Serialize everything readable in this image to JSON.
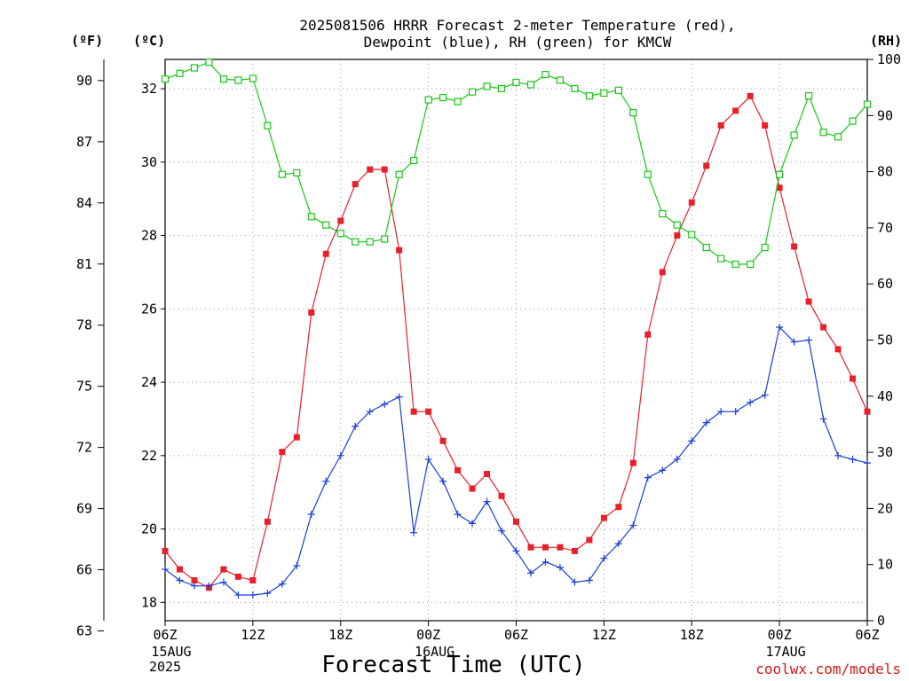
{
  "title_line1": "2025081506 HRRR Forecast 2-meter Temperature (red),",
  "title_line2": "Dewpoint (blue), RH (green) for KMCW",
  "unit_f": "(ºF)",
  "unit_c": "(ºC)",
  "unit_rh": "(RH)",
  "xlabel": "Forecast Time (UTC)",
  "credit": "coolwx.com/models",
  "colors": {
    "temperature": "#e8202a",
    "dewpoint": "#1a3ed8",
    "rh": "#18c818"
  },
  "chart_data": {
    "type": "line",
    "title": "2025081506 HRRR Forecast 2-meter Temperature (red), Dewpoint (blue), RH (green) for KMCW",
    "xlabel": "Forecast Time (UTC)",
    "x_unit": "forecast hour",
    "x": [
      0,
      1,
      2,
      3,
      4,
      5,
      6,
      7,
      8,
      9,
      10,
      11,
      12,
      13,
      14,
      15,
      16,
      17,
      18,
      19,
      20,
      21,
      22,
      23,
      24,
      25,
      26,
      27,
      28,
      29,
      30,
      31,
      32,
      33,
      34,
      35,
      36,
      37,
      38,
      39,
      40,
      41,
      42,
      43,
      44,
      45,
      46,
      47,
      48
    ],
    "xlim": [
      0,
      48
    ],
    "x_ticks": [
      {
        "x": 0,
        "label": "06Z",
        "date": "15AUG",
        "year": "2025"
      },
      {
        "x": 6,
        "label": "12Z"
      },
      {
        "x": 12,
        "label": "18Z"
      },
      {
        "x": 18,
        "label": "00Z",
        "date": "16AUG"
      },
      {
        "x": 24,
        "label": "06Z"
      },
      {
        "x": 30,
        "label": "12Z"
      },
      {
        "x": 36,
        "label": "18Z"
      },
      {
        "x": 42,
        "label": "00Z",
        "date": "17AUG"
      },
      {
        "x": 48,
        "label": "06Z"
      }
    ],
    "y_left_unit": "°C",
    "ylim_c": [
      17.5,
      32.8
    ],
    "y_ticks_c": [
      18,
      20,
      22,
      24,
      26,
      28,
      30,
      32
    ],
    "y_ticks_f": [
      63,
      66,
      69,
      72,
      75,
      78,
      81,
      84,
      87,
      90
    ],
    "y_right_unit": "RH",
    "ylim_rh": [
      0,
      100
    ],
    "y_ticks_rh": [
      0,
      10,
      20,
      30,
      40,
      50,
      60,
      70,
      80,
      90,
      100
    ],
    "series": [
      {
        "name": "Temperature (red)",
        "axis": "c",
        "color": "#e8202a",
        "marker": "filled-square",
        "values": [
          19.4,
          18.9,
          18.6,
          18.4,
          18.9,
          18.7,
          18.6,
          20.2,
          22.1,
          22.5,
          25.9,
          27.5,
          28.4,
          29.4,
          29.8,
          29.8,
          27.6,
          23.2,
          23.2,
          22.4,
          21.6,
          21.1,
          21.5,
          20.9,
          20.2,
          19.5,
          19.5,
          19.5,
          19.4,
          19.7,
          20.3,
          20.6,
          21.8,
          25.3,
          27.0,
          28.0,
          28.9,
          29.9,
          31.0,
          31.4,
          31.8,
          31.0,
          29.3,
          27.7,
          26.2,
          25.5,
          24.9,
          24.1,
          23.2
        ]
      },
      {
        "name": "Dewpoint (blue)",
        "axis": "c",
        "color": "#1a3ed8",
        "marker": "plus",
        "values": [
          18.9,
          18.6,
          18.45,
          18.45,
          18.55,
          18.2,
          18.2,
          18.25,
          18.5,
          19.0,
          20.4,
          21.3,
          22.0,
          22.8,
          23.2,
          23.4,
          23.6,
          19.9,
          21.9,
          21.3,
          20.4,
          20.15,
          20.75,
          19.95,
          19.4,
          18.8,
          19.1,
          18.95,
          18.55,
          18.6,
          19.2,
          19.6,
          20.1,
          21.4,
          21.6,
          21.9,
          22.4,
          22.9,
          23.2,
          23.2,
          23.45,
          23.65,
          25.5,
          25.1,
          25.15,
          23.0,
          22.0,
          21.9,
          21.8
        ]
      },
      {
        "name": "RH (green)",
        "axis": "rh",
        "color": "#18c818",
        "marker": "open-square",
        "values": [
          96.5,
          97.5,
          98.5,
          99.5,
          96.5,
          96.3,
          96.6,
          88.2,
          79.5,
          79.8,
          72.0,
          70.5,
          69.0,
          67.5,
          67.5,
          68.0,
          79.5,
          82.0,
          92.8,
          93.2,
          92.5,
          94.2,
          95.2,
          94.8,
          95.9,
          95.5,
          97.3,
          96.3,
          94.8,
          93.5,
          94.0,
          94.5,
          90.5,
          79.5,
          72.5,
          70.5,
          68.8,
          66.5,
          64.5,
          63.5,
          63.5,
          66.5,
          79.5,
          86.5,
          93.5,
          87.0,
          86.2,
          89.0,
          92.0
        ]
      }
    ],
    "grid": true,
    "legend": "none"
  }
}
